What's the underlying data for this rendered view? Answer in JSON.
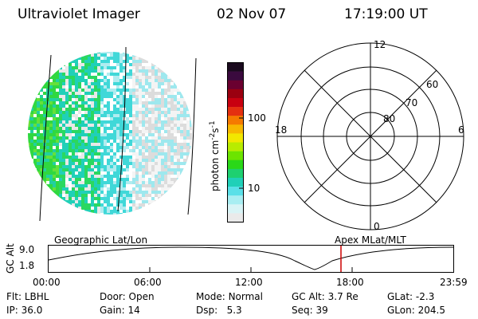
{
  "header": {
    "instrument": "Ultraviolet Imager",
    "date": "02 Nov 07",
    "time": "17:19:00 UT"
  },
  "colorbar": {
    "unit_label": "photon cm",
    "unit_exp1": "-2",
    "unit_s": "s",
    "unit_exp2": "-1",
    "tick_100": "100",
    "tick_10": "10",
    "colors": [
      "#1a0a1e",
      "#3a0a3e",
      "#6a0030",
      "#9a0010",
      "#c80010",
      "#e43010",
      "#f57a00",
      "#f7b800",
      "#f2e800",
      "#b8ec00",
      "#6ce400",
      "#2ad818",
      "#1ed070",
      "#20d0b8",
      "#5ae0e8",
      "#a8eef2",
      "#d8f4f6",
      "#eaeaea"
    ]
  },
  "polar_plot": {
    "mlt_top": "12",
    "mlt_bottom": "0",
    "mlt_left": "18",
    "mlt_right": "6",
    "lat_60": "60",
    "lat_70": "70",
    "lat_80": "80"
  },
  "timeline": {
    "left_label": "Geographic Lat/Lon",
    "right_label": "Apex MLat/MLT",
    "y_axis_label": "GC Alt",
    "y_max": "9.0",
    "y_min": "1.8",
    "ticks": [
      "00:00",
      "06:00",
      "12:00",
      "18:00",
      "23:59"
    ],
    "marker_color": "#cc0000"
  },
  "status": {
    "filter_label": "Flt:",
    "filter_value": "LBHL",
    "door_label": "Door:",
    "door_value": "Open",
    "mode_label": "Mode:",
    "mode_value": "Normal",
    "gcalt_label": "GC Alt:",
    "gcalt_value": "3.7 Re",
    "glat_label": "GLat:",
    "glat_value": "-2.3",
    "ip_label": "IP:",
    "ip_value": "36.0",
    "gain_label": "Gain:",
    "gain_value": "14",
    "dsp_label": "Dsp:",
    "dsp_value": "5.3",
    "seq_label": "Seq:",
    "seq_value": "39",
    "glon_label": "GLon:",
    "glon_value": "204.5"
  }
}
